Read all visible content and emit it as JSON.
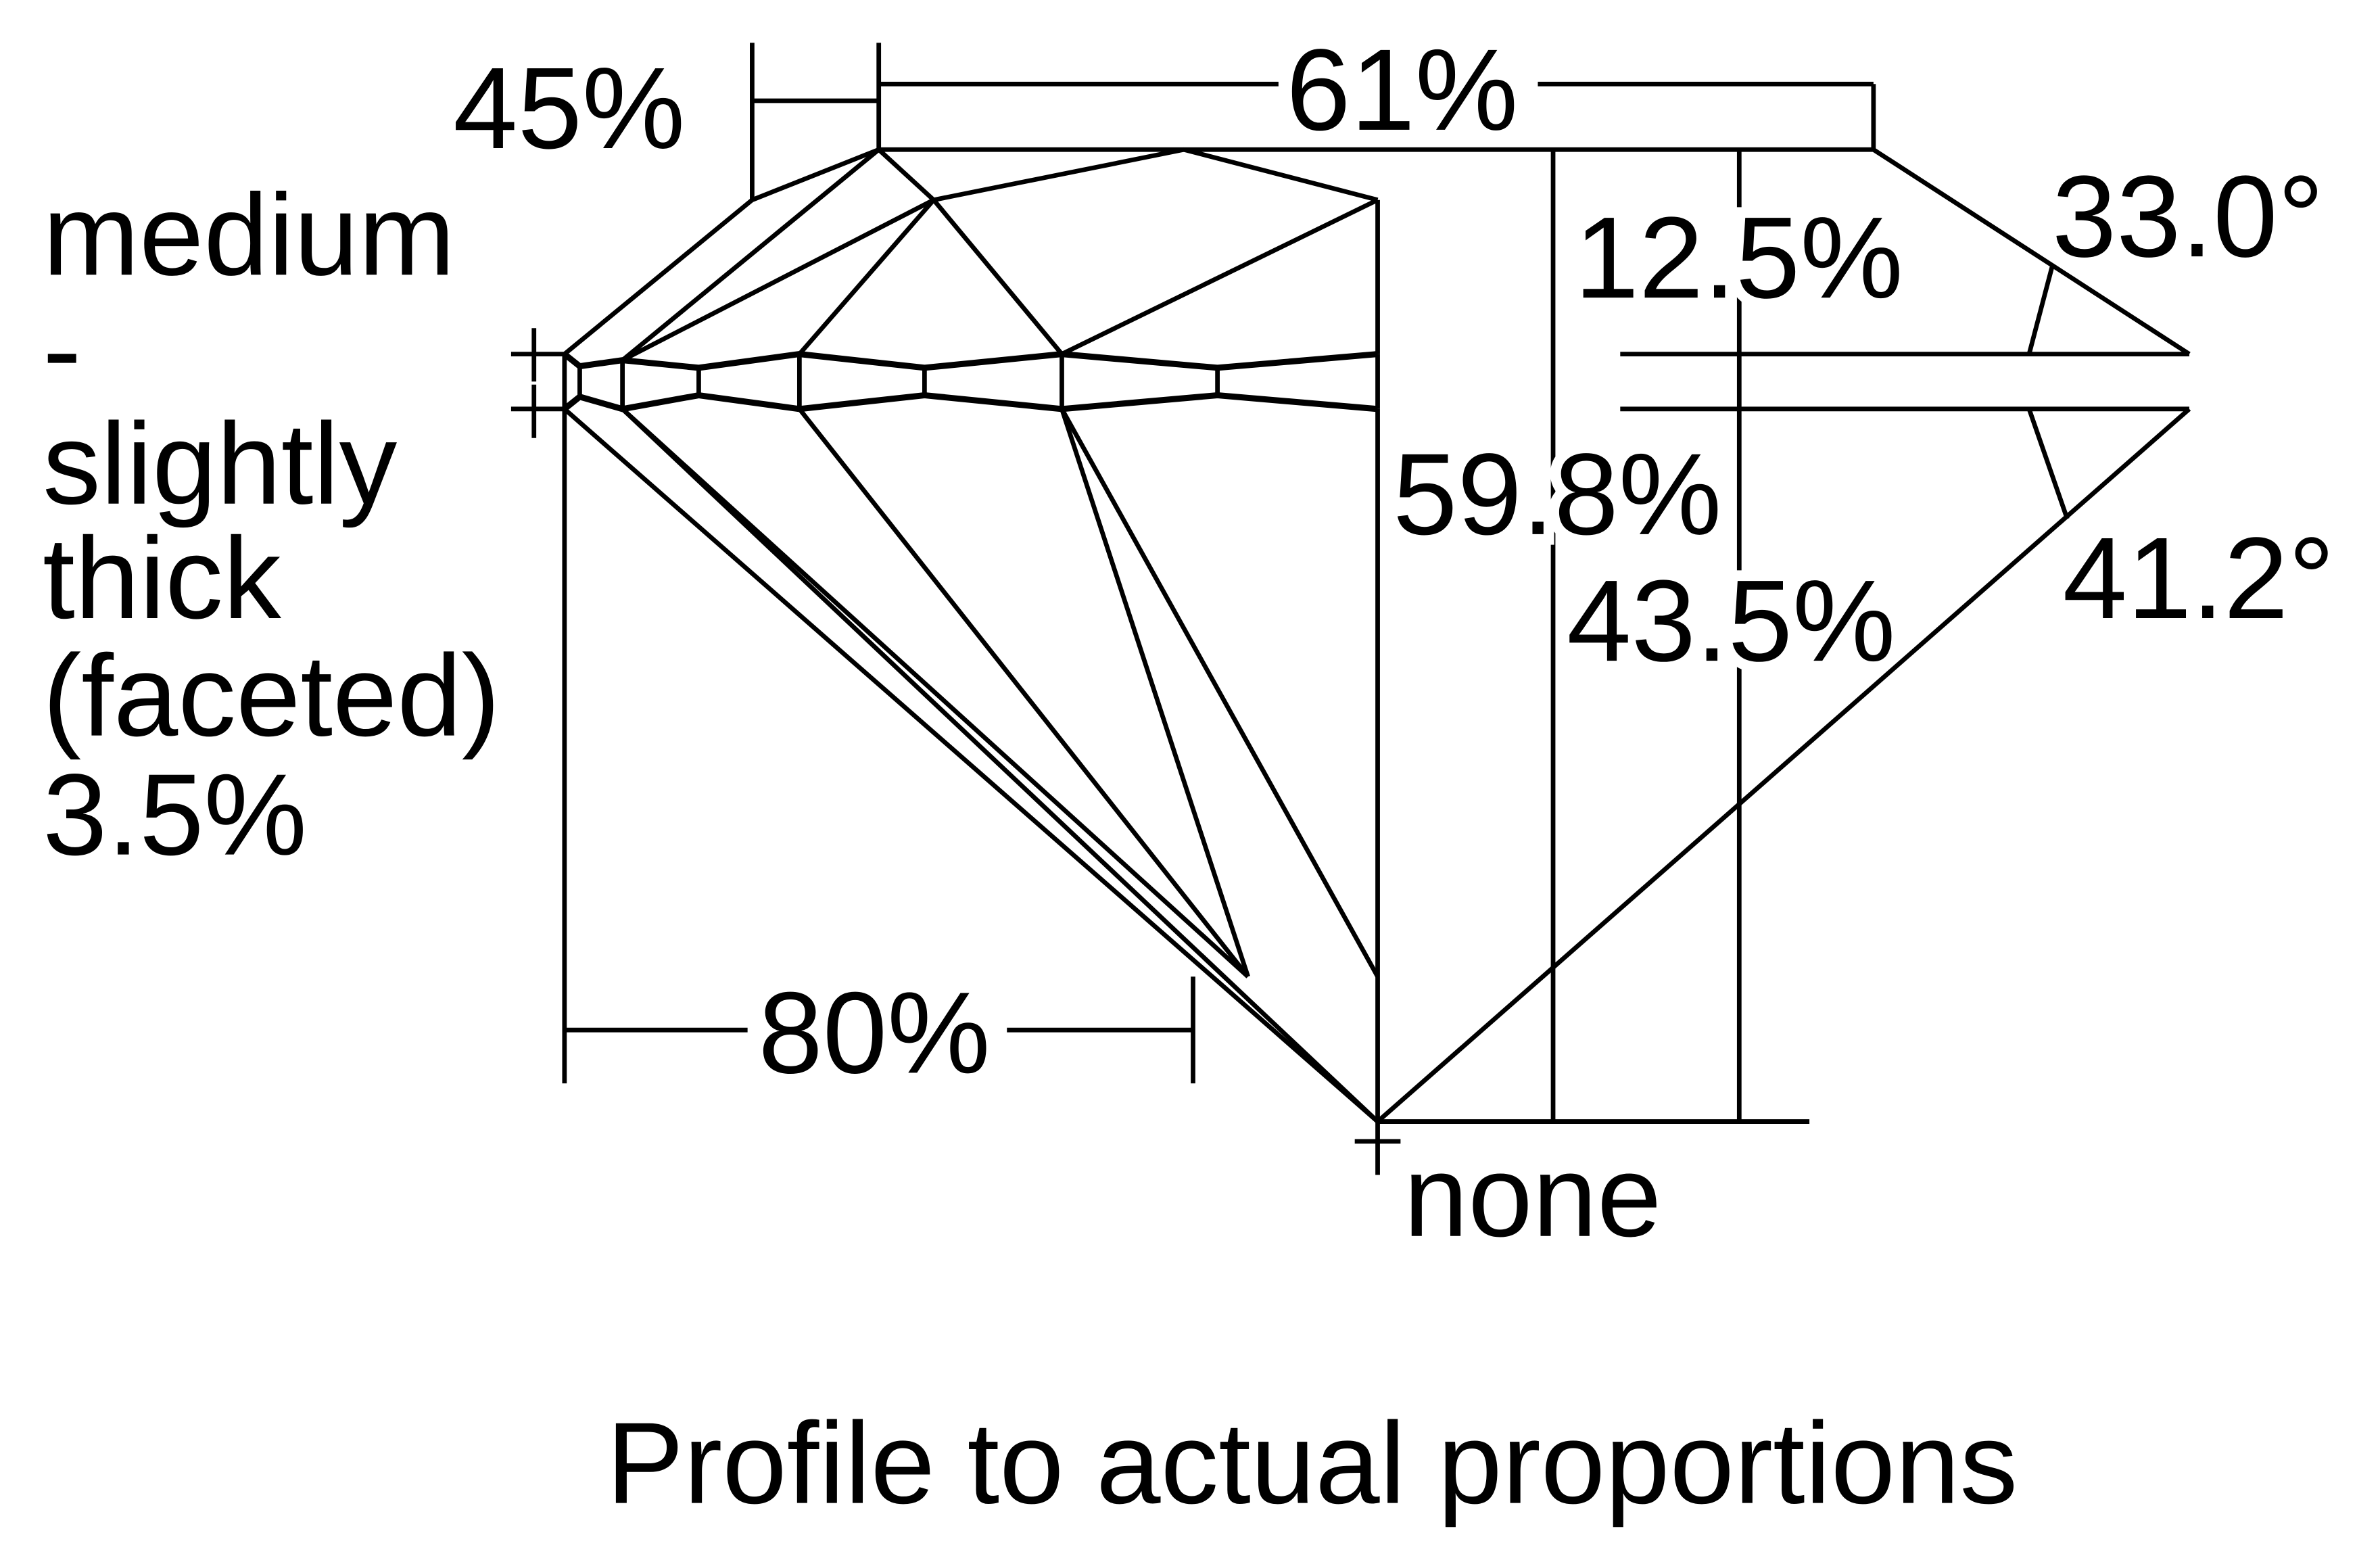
{
  "diagram": {
    "caption": "Profile to actual proportions",
    "labels": {
      "lower_half": "45%",
      "table": "61%",
      "crown_height": "12.5%",
      "crown_angle": "33.0°",
      "total_depth": "59.8%",
      "pavilion_depth": "43.5%",
      "pavilion_angle": "41.2°",
      "star_length": "80%",
      "culet": "none"
    },
    "girdle": [
      "medium",
      "-",
      "slightly",
      "thick",
      "(faceted)",
      "3.5%"
    ],
    "line_color": "#000000",
    "background": "#ffffff"
  }
}
